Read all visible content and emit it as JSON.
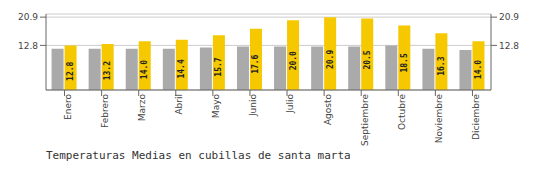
{
  "chart_data": {
    "type": "bar",
    "title": "Temperaturas Medias en cubillas de santa marta",
    "categories": [
      "Enero",
      "Febrero",
      "Marzo",
      "Abril",
      "Mayo",
      "Junio",
      "Julio",
      "Agosto",
      "Septiembre",
      "Octubre",
      "Noviembre",
      "Diciembre"
    ],
    "series": [
      {
        "color": "#AAAAAA",
        "values": [
          11.8,
          11.8,
          11.8,
          11.8,
          12.2,
          12.5,
          12.5,
          12.5,
          12.5,
          12.8,
          11.8,
          11.5
        ]
      },
      {
        "color": "#F5C800",
        "values": [
          12.8,
          13.2,
          14.0,
          14.4,
          15.7,
          17.6,
          20.0,
          20.9,
          20.5,
          18.5,
          16.3,
          14.0
        ],
        "data_labels": true,
        "value_labels": [
          "12.8",
          "13.2",
          "14.0",
          "14.4",
          "15.7",
          "17.6",
          "20.0",
          "20.9",
          "20.5",
          "18.5",
          "16.3",
          "14.0"
        ]
      }
    ],
    "ylim": [
      0,
      21.8
    ],
    "yticks": [
      12.8,
      20.9
    ],
    "grid": true
  }
}
